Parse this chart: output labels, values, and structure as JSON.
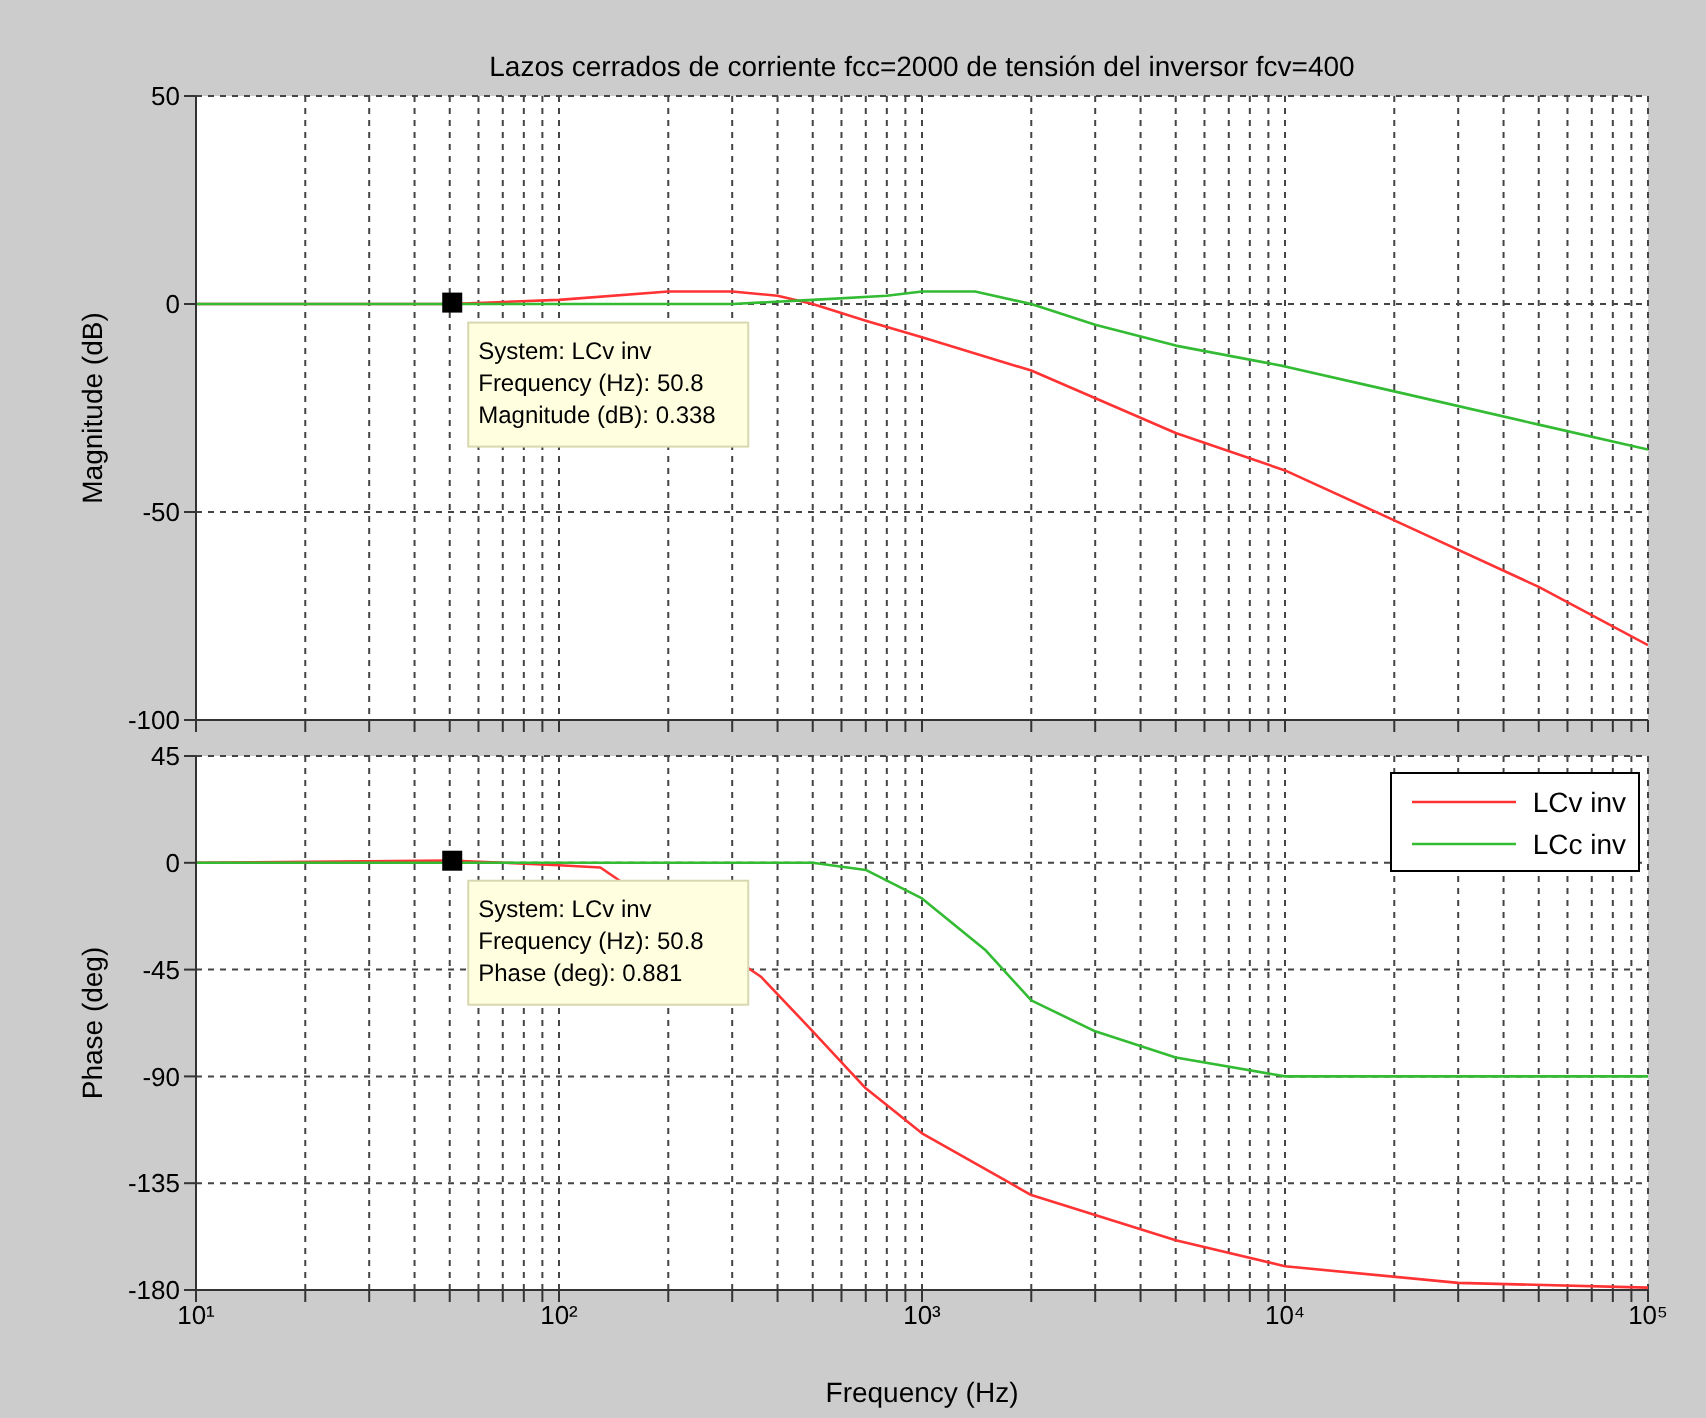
{
  "chart_data": [
    {
      "type": "line",
      "title": "Lazos cerrados de corriente fcc=2000 de tensión del inversor fcv=400",
      "ylabel": "Magnitude (dB)",
      "log": "x",
      "grid": true,
      "tick_labels": "y",
      "marker": "none",
      "line_style": "solid",
      "xlim": [
        10,
        100000
      ],
      "ylim": [
        -100,
        50
      ],
      "yticks": [
        -100,
        -50,
        0,
        50
      ],
      "xticks": [
        {
          "value": 10,
          "label": null
        },
        {
          "value": 20,
          "label": null
        },
        {
          "value": 30,
          "label": null
        },
        {
          "value": 40,
          "label": null
        },
        {
          "value": 50,
          "label": null
        },
        {
          "value": 60,
          "label": null
        },
        {
          "value": 70,
          "label": null
        },
        {
          "value": 80,
          "label": null
        },
        {
          "value": 90,
          "label": null
        },
        {
          "value": 100,
          "label": null
        },
        {
          "value": 200,
          "label": null
        },
        {
          "value": 300,
          "label": null
        },
        {
          "value": 400,
          "label": null
        },
        {
          "value": 500,
          "label": null
        },
        {
          "value": 600,
          "label": null
        },
        {
          "value": 700,
          "label": null
        },
        {
          "value": 800,
          "label": null
        },
        {
          "value": 900,
          "label": null
        },
        {
          "value": 1000,
          "label": null
        },
        {
          "value": 2000,
          "label": null
        },
        {
          "value": 3000,
          "label": null
        },
        {
          "value": 4000,
          "label": null
        },
        {
          "value": 5000,
          "label": null
        },
        {
          "value": 6000,
          "label": null
        },
        {
          "value": 7000,
          "label": null
        },
        {
          "value": 8000,
          "label": null
        },
        {
          "value": 9000,
          "label": null
        },
        {
          "value": 10000,
          "label": null
        },
        {
          "value": 20000,
          "label": null
        },
        {
          "value": 30000,
          "label": null
        },
        {
          "value": 40000,
          "label": null
        },
        {
          "value": 50000,
          "label": null
        },
        {
          "value": 60000,
          "label": null
        },
        {
          "value": 70000,
          "label": null
        },
        {
          "value": 80000,
          "label": null
        },
        {
          "value": 90000,
          "label": null
        },
        {
          "value": 100000,
          "label": null
        }
      ],
      "series": [
        {
          "color": "#ff3333",
          "x": [
            10,
            50,
            100,
            200,
            300,
            400,
            500,
            700,
            1000,
            2000,
            5000,
            10000,
            20000,
            50000,
            100000
          ],
          "values": [
            0,
            0,
            1,
            3,
            3,
            2,
            0,
            -4,
            -8,
            -16,
            -31,
            -40,
            -52,
            -68,
            -82
          ]
        },
        {
          "color": "#33bb33",
          "x": [
            10,
            100,
            300,
            500,
            800,
            1000,
            1400,
            2000,
            3000,
            5000,
            10000,
            20000,
            50000,
            100000
          ],
          "values": [
            0,
            0,
            0,
            1,
            2,
            3,
            3,
            0,
            -5,
            -10,
            -15,
            -21,
            -29,
            -35
          ]
        }
      ],
      "annotations": [
        {
          "text": "System: LCv inv\nFrequency (Hz): 50.8\nMagnitude (dB): 0.338",
          "x": 50.8,
          "y": 0.338
        }
      ]
    },
    {
      "type": "line",
      "xlabel": "Frequency  (Hz)",
      "ylabel": "Phase (deg)",
      "log": "x",
      "grid": true,
      "legend": "top right",
      "marker": "none",
      "line_style": "solid",
      "xlim": [
        10,
        100000
      ],
      "ylim": [
        -180,
        45
      ],
      "yticks": [
        -180,
        -135,
        -90,
        -45,
        0,
        45
      ],
      "xticks": [
        {
          "value": 10,
          "label": "10¹"
        },
        {
          "value": 20,
          "label": null
        },
        {
          "value": 30,
          "label": null
        },
        {
          "value": 40,
          "label": null
        },
        {
          "value": 50,
          "label": null
        },
        {
          "value": 60,
          "label": null
        },
        {
          "value": 70,
          "label": null
        },
        {
          "value": 80,
          "label": null
        },
        {
          "value": 90,
          "label": null
        },
        {
          "value": 100,
          "label": "10²"
        },
        {
          "value": 200,
          "label": null
        },
        {
          "value": 300,
          "label": null
        },
        {
          "value": 400,
          "label": null
        },
        {
          "value": 500,
          "label": null
        },
        {
          "value": 600,
          "label": null
        },
        {
          "value": 700,
          "label": null
        },
        {
          "value": 800,
          "label": null
        },
        {
          "value": 900,
          "label": null
        },
        {
          "value": 1000,
          "label": "10³"
        },
        {
          "value": 2000,
          "label": null
        },
        {
          "value": 3000,
          "label": null
        },
        {
          "value": 4000,
          "label": null
        },
        {
          "value": 5000,
          "label": null
        },
        {
          "value": 6000,
          "label": null
        },
        {
          "value": 7000,
          "label": null
        },
        {
          "value": 8000,
          "label": null
        },
        {
          "value": 9000,
          "label": null
        },
        {
          "value": 10000,
          "label": "10⁴"
        },
        {
          "value": 20000,
          "label": null
        },
        {
          "value": 30000,
          "label": null
        },
        {
          "value": 40000,
          "label": null
        },
        {
          "value": 50000,
          "label": null
        },
        {
          "value": 60000,
          "label": null
        },
        {
          "value": 70000,
          "label": null
        },
        {
          "value": 80000,
          "label": null
        },
        {
          "value": 90000,
          "label": null
        },
        {
          "value": 100000,
          "label": "10⁵"
        }
      ],
      "series": [
        {
          "name": "LCv inv",
          "color": "#ff3333",
          "x": [
            10,
            50,
            100,
            130,
            360,
            500,
            700,
            1000,
            2000,
            5000,
            10000,
            30000,
            100000
          ],
          "values": [
            0,
            1,
            -1,
            -2,
            -48,
            -71,
            -95,
            -114,
            -140,
            -159,
            -170,
            -177,
            -179
          ]
        },
        {
          "name": "LCc inv",
          "color": "#33bb33",
          "x": [
            10,
            100,
            500,
            700,
            1000,
            1500,
            2000,
            3000,
            5000,
            10000,
            100000
          ],
          "values": [
            0,
            0,
            0,
            -3,
            -15,
            -37,
            -58,
            -71,
            -82,
            -90,
            -90
          ]
        }
      ],
      "annotations": [
        {
          "text": "System: LCv inv\nFrequency (Hz): 50.8\nPhase (deg): 0.881",
          "x": 50.8,
          "y": 0.881
        }
      ]
    }
  ]
}
